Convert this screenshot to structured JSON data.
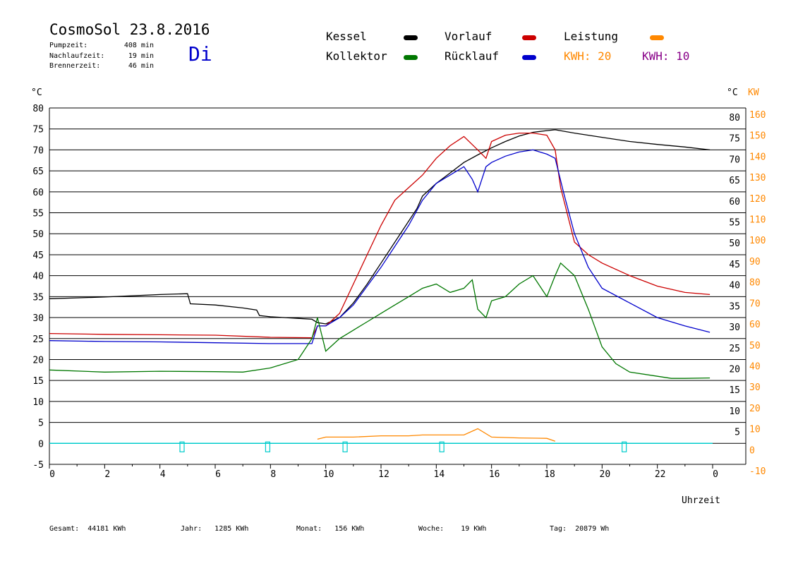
{
  "header": {
    "title": "CosmoSol 23.8.2016",
    "weekday": "Di",
    "stats": [
      {
        "label": "Pumpzeit:",
        "value": "408 min"
      },
      {
        "label": "Nachlaufzeit:",
        "value": "19 min"
      },
      {
        "label": "Brennerzeit:",
        "value": "46 min"
      }
    ]
  },
  "legend": {
    "kessel": {
      "label": "Kessel",
      "color": "#000000"
    },
    "vorlauf": {
      "label": "Vorlauf",
      "color": "#cc0000"
    },
    "leistung": {
      "label": "Leistung",
      "color": "#ff8800"
    },
    "kollektor": {
      "label": "Kollektor",
      "color": "#007700"
    },
    "ruecklauf": {
      "label": "Rücklauf",
      "color": "#0000cc"
    },
    "kwh1": {
      "label": "KWH:",
      "value": "20",
      "color": "#ff8800"
    },
    "kwh2": {
      "label": "KWH:",
      "value": "10",
      "color": "#880088"
    }
  },
  "footer": [
    {
      "label": "Gesamt:",
      "value": "44181 KWh"
    },
    {
      "label": "Jahr:",
      "value": "1285 KWh"
    },
    {
      "label": "Monat:",
      "value": "156 KWh"
    },
    {
      "label": "Woche:",
      "value": "19 KWh"
    },
    {
      "label": "Tag:",
      "value": "20879 Wh"
    }
  ],
  "chart_data": {
    "type": "line",
    "xlabel": "Uhrzeit",
    "ylabel_left": "°C",
    "ylabel_right_1": "°C",
    "ylabel_right_2": "KW",
    "xlim": [
      0,
      24
    ],
    "ylim": [
      -5,
      80
    ],
    "x_ticks": [
      "0",
      "2",
      "4",
      "6",
      "8",
      "10",
      "12",
      "14",
      "16",
      "18",
      "20",
      "22",
      "0"
    ],
    "y_ticks_left": [
      "80",
      "75",
      "70",
      "65",
      "60",
      "55",
      "50",
      "45",
      "40",
      "35",
      "30",
      "25",
      "20",
      "15",
      "10",
      "5",
      "0",
      "-5"
    ],
    "y_ticks_right_celsius": [
      "80",
      "75",
      "70",
      "65",
      "60",
      "55",
      "50",
      "45",
      "40",
      "35",
      "30",
      "25",
      "20",
      "15",
      "10",
      "5"
    ],
    "y_ticks_right_kw": [
      "160",
      "150",
      "140",
      "130",
      "120",
      "110",
      "100",
      "90",
      "80",
      "70",
      "60",
      "50",
      "40",
      "30",
      "20",
      "10",
      "0",
      "-10"
    ],
    "grid": true,
    "series": [
      {
        "name": "Kessel",
        "color": "#000000",
        "points": [
          [
            0,
            34.5
          ],
          [
            1,
            34.7
          ],
          [
            2,
            34.9
          ],
          [
            3,
            35.2
          ],
          [
            4,
            35.5
          ],
          [
            5,
            35.7
          ],
          [
            5.1,
            33.3
          ],
          [
            6,
            33.0
          ],
          [
            7,
            32.3
          ],
          [
            7.5,
            31.8
          ],
          [
            7.6,
            30.5
          ],
          [
            8,
            30.2
          ],
          [
            9,
            29.8
          ],
          [
            9.5,
            29.6
          ],
          [
            9.7,
            28.8
          ],
          [
            10,
            28.5
          ],
          [
            10.5,
            30
          ],
          [
            11,
            33.5
          ],
          [
            11.5,
            38
          ],
          [
            12,
            43
          ],
          [
            12.5,
            48
          ],
          [
            13,
            53
          ],
          [
            13.3,
            56
          ],
          [
            13.5,
            59
          ],
          [
            14,
            62
          ],
          [
            14.5,
            64.5
          ],
          [
            15,
            67
          ],
          [
            15.5,
            68.8
          ],
          [
            16,
            70.5
          ],
          [
            16.5,
            72
          ],
          [
            17,
            73.3
          ],
          [
            17.5,
            74.2
          ],
          [
            18,
            74.6
          ],
          [
            18.3,
            74.8
          ],
          [
            19,
            74
          ],
          [
            20,
            73
          ],
          [
            21,
            72
          ],
          [
            22,
            71.3
          ],
          [
            23,
            70.7
          ],
          [
            23.9,
            70
          ]
        ]
      },
      {
        "name": "Vorlauf",
        "color": "#cc0000",
        "points": [
          [
            0,
            26.2
          ],
          [
            2,
            26.0
          ],
          [
            4,
            25.9
          ],
          [
            6,
            25.8
          ],
          [
            8,
            25.3
          ],
          [
            9.5,
            25.2
          ],
          [
            9.7,
            28
          ],
          [
            10,
            28
          ],
          [
            10.5,
            31
          ],
          [
            11,
            38
          ],
          [
            11.5,
            45
          ],
          [
            12,
            52
          ],
          [
            12.5,
            58
          ],
          [
            13,
            61
          ],
          [
            13.5,
            64
          ],
          [
            14,
            68
          ],
          [
            14.5,
            71
          ],
          [
            15,
            73.2
          ],
          [
            15.5,
            70
          ],
          [
            15.8,
            68
          ],
          [
            16,
            72
          ],
          [
            16.5,
            73.5
          ],
          [
            17,
            74
          ],
          [
            17.5,
            74
          ],
          [
            18,
            73.5
          ],
          [
            18.3,
            70
          ],
          [
            18.5,
            61
          ],
          [
            19,
            48
          ],
          [
            19.5,
            45
          ],
          [
            20,
            43
          ],
          [
            21,
            40
          ],
          [
            22,
            37.5
          ],
          [
            23,
            36
          ],
          [
            23.9,
            35.5
          ]
        ]
      },
      {
        "name": "Rücklauf",
        "color": "#0000cc",
        "points": [
          [
            0,
            24.5
          ],
          [
            2,
            24.3
          ],
          [
            4,
            24.2
          ],
          [
            6,
            24.0
          ],
          [
            8,
            23.8
          ],
          [
            9.5,
            23.8
          ],
          [
            9.7,
            28
          ],
          [
            10,
            28
          ],
          [
            10.5,
            30
          ],
          [
            11,
            33
          ],
          [
            11.5,
            37.5
          ],
          [
            12,
            42
          ],
          [
            12.5,
            47
          ],
          [
            13,
            52
          ],
          [
            13.5,
            58
          ],
          [
            14,
            62
          ],
          [
            14.5,
            64
          ],
          [
            15,
            66
          ],
          [
            15.3,
            63
          ],
          [
            15.5,
            60
          ],
          [
            15.8,
            66
          ],
          [
            16,
            67
          ],
          [
            16.5,
            68.5
          ],
          [
            17,
            69.5
          ],
          [
            17.5,
            70
          ],
          [
            18,
            69
          ],
          [
            18.3,
            68
          ],
          [
            18.6,
            60
          ],
          [
            19,
            50
          ],
          [
            19.5,
            42
          ],
          [
            20,
            37
          ],
          [
            21,
            33.5
          ],
          [
            22,
            30
          ],
          [
            23,
            28
          ],
          [
            23.9,
            26.5
          ]
        ]
      },
      {
        "name": "Kollektor",
        "color": "#007700",
        "points": [
          [
            0,
            17.5
          ],
          [
            2,
            17
          ],
          [
            4,
            17.2
          ],
          [
            6,
            17.1
          ],
          [
            7,
            17
          ],
          [
            8,
            18
          ],
          [
            9,
            20
          ],
          [
            9.5,
            25
          ],
          [
            9.7,
            30
          ],
          [
            10,
            22
          ],
          [
            10.5,
            25
          ],
          [
            11,
            27
          ],
          [
            11.5,
            29
          ],
          [
            12,
            31
          ],
          [
            12.5,
            33
          ],
          [
            13,
            35
          ],
          [
            13.5,
            37
          ],
          [
            14,
            38
          ],
          [
            14.5,
            36
          ],
          [
            15,
            37
          ],
          [
            15.3,
            39
          ],
          [
            15.5,
            32
          ],
          [
            15.8,
            30
          ],
          [
            16,
            34
          ],
          [
            16.5,
            35
          ],
          [
            17,
            38
          ],
          [
            17.5,
            40
          ],
          [
            18,
            35
          ],
          [
            18.3,
            40
          ],
          [
            18.5,
            43
          ],
          [
            19,
            40
          ],
          [
            19.5,
            32
          ],
          [
            20,
            23
          ],
          [
            20.5,
            19
          ],
          [
            21,
            17
          ],
          [
            22,
            16
          ],
          [
            22.5,
            15.5
          ],
          [
            23,
            15.5
          ],
          [
            23.9,
            15.6
          ]
        ]
      },
      {
        "name": "Leistung",
        "color": "#ff8800",
        "points": [
          [
            9.7,
            1
          ],
          [
            10,
            1.5
          ],
          [
            11,
            1.5
          ],
          [
            12,
            1.8
          ],
          [
            13,
            1.8
          ],
          [
            13.5,
            2
          ],
          [
            14,
            2
          ],
          [
            15,
            2
          ],
          [
            15.5,
            3.5
          ],
          [
            16,
            1.5
          ],
          [
            17,
            1.3
          ],
          [
            18,
            1.2
          ],
          [
            18.3,
            0.5
          ]
        ]
      }
    ]
  }
}
